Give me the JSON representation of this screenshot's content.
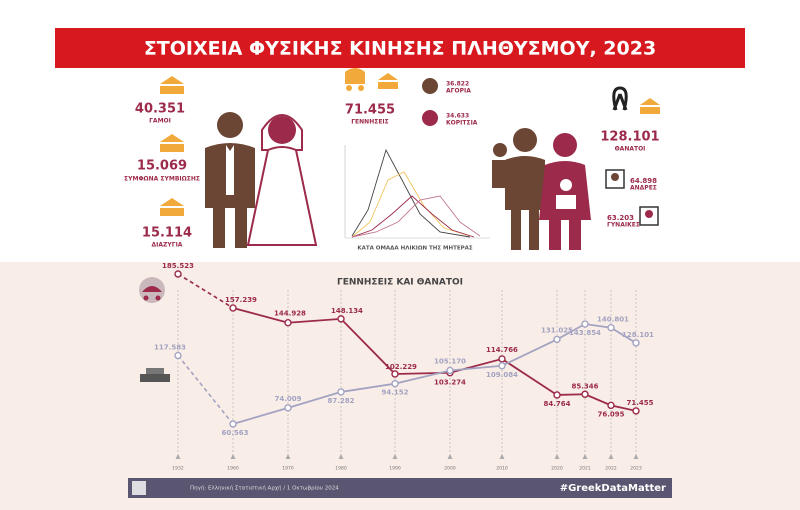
{
  "header": {
    "title": "ΣΤΟΙΧΕΙΑ ΦΥΣΙΚΗΣ ΚΙΝΗΣΗΣ ΠΛΗΘΥΣΜΟΥ, 2023"
  },
  "marriages": {
    "items": [
      {
        "value": "40.351",
        "label": "ΓΑΜΟΙ"
      },
      {
        "value": "15.069",
        "label": "ΣΥΜΦΩΝΑ ΣΥΜΒΙΩΣΗΣ"
      },
      {
        "value": "15.114",
        "label": "ΔΙΑΖΥΓΙΑ"
      }
    ]
  },
  "births": {
    "value": "71.455",
    "label": "ΓΕΝΝΗΣΕΙΣ",
    "boys": {
      "value": "36.822",
      "label": "ΑΓΟΡΙΑ"
    },
    "girls": {
      "value": "34.633",
      "label": "ΚΟΡΙΤΣΙΑ"
    },
    "mini_chart_caption": "ΚΑΤΑ ΟΜΑΔΑ ΗΛΙΚΙΩΝ ΤΗΣ ΜΗΤΕΡΑΣ"
  },
  "deaths": {
    "value": "128.101",
    "label": "ΘΑΝΑΤΟΙ",
    "men": {
      "value": "64.898",
      "label": "ΑΝΔΡΕΣ"
    },
    "women": {
      "value": "63.203",
      "label": "ΓΥΝΑΙΚΕΣ"
    }
  },
  "chart_data": {
    "type": "line",
    "title": "ΓΕΝΝΗΣΕΙΣ ΚΑΙ ΘΑΝΑΤΟΙ",
    "categories": [
      "1932",
      "1960",
      "1970",
      "1980",
      "1990",
      "2000",
      "2010",
      "2020",
      "2021",
      "2022",
      "2023"
    ],
    "series": [
      {
        "name": "ΓΕΝΝΗΣΕΙΣ",
        "color": "#9c2a4a",
        "values": [
          185523,
          157239,
          144928,
          148134,
          102229,
          103274,
          114766,
          84764,
          85346,
          76095,
          71455
        ],
        "value_labels": [
          "185.523",
          "157.239",
          "144.928",
          "148.134",
          "102.229",
          "103.274",
          "114.766",
          "84.764",
          "85.346",
          "76.095",
          "71.455"
        ]
      },
      {
        "name": "ΘΑΝΑΤΟΙ",
        "color": "#a3a3c2",
        "values": [
          117583,
          60563,
          74009,
          87282,
          94152,
          105170,
          109084,
          131025,
          143854,
          140801,
          128101
        ],
        "value_labels": [
          "117.583",
          "60.563",
          "74.009",
          "87.282",
          "94.152",
          "105.170",
          "109.084",
          "131.025",
          "143.854",
          "140.801",
          "128.101"
        ]
      }
    ]
  },
  "footer": {
    "source": "Πηγή: Ελληνική Στατιστική Αρχή / 1 Οκτωβρίου 2024",
    "hashtag": "#GreekDataMatter"
  }
}
